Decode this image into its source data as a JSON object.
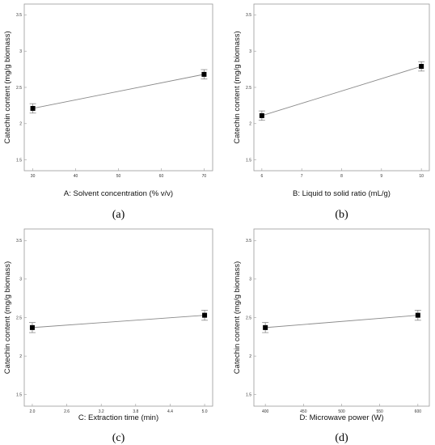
{
  "chart_data": [
    {
      "type": "line",
      "panel_label": "(a)",
      "xlabel": "A: Solvent concentration (% v/v)",
      "ylabel": "Catechin content (mg/g biomass)",
      "xlim": [
        28,
        72
      ],
      "ylim": [
        1.35,
        3.65
      ],
      "xticks": [
        30,
        40,
        50,
        60,
        70
      ],
      "xtick_labels": [
        "30",
        "40",
        "50",
        "60",
        "70"
      ],
      "yticks": [
        1.5,
        2,
        2.5,
        3,
        3.5
      ],
      "ytick_labels": [
        "1.5",
        "2",
        "2.5",
        "3",
        "3.5"
      ],
      "points": [
        {
          "x": 30,
          "y": 2.21,
          "err": 0.065
        },
        {
          "x": 70,
          "y": 2.68,
          "err": 0.065
        }
      ],
      "grid": false,
      "error_bars": true
    },
    {
      "type": "line",
      "panel_label": "(b)",
      "xlabel": "B: Liquid to solid ratio (mL/g)",
      "ylabel": "Catechin content (mg/g biomass)",
      "xlim": [
        5.8,
        10.2
      ],
      "ylim": [
        1.35,
        3.65
      ],
      "xticks": [
        6,
        7,
        8,
        9,
        10
      ],
      "xtick_labels": [
        "6",
        "7",
        "8",
        "9",
        "10"
      ],
      "yticks": [
        1.5,
        2,
        2.5,
        3,
        3.5
      ],
      "ytick_labels": [
        "1.5",
        "2",
        "2.5",
        "3",
        "3.5"
      ],
      "points": [
        {
          "x": 6,
          "y": 2.11,
          "err": 0.065
        },
        {
          "x": 10,
          "y": 2.79,
          "err": 0.065
        }
      ],
      "grid": false,
      "error_bars": true
    },
    {
      "type": "line",
      "panel_label": "(c)",
      "xlabel": "C: Extraction time (min)",
      "ylabel": "Catechin content (mg/g biomass)",
      "xlim": [
        1.86,
        5.14
      ],
      "ylim": [
        1.35,
        3.65
      ],
      "xticks": [
        2.0,
        2.6,
        3.2,
        3.8,
        4.4,
        5.0
      ],
      "xtick_labels": [
        "2.0",
        "2.6",
        "3.2",
        "3.8",
        "4.4",
        "5.0"
      ],
      "yticks": [
        1.5,
        2,
        2.5,
        3,
        3.5
      ],
      "ytick_labels": [
        "1.5",
        "2",
        "2.5",
        "3",
        "3.5"
      ],
      "points": [
        {
          "x": 2.0,
          "y": 2.37,
          "err": 0.065
        },
        {
          "x": 5.0,
          "y": 2.53,
          "err": 0.065
        }
      ],
      "grid": false,
      "error_bars": true
    },
    {
      "type": "line",
      "panel_label": "(d)",
      "xlabel": "D: Microwave power (W)",
      "ylabel": "Catechin content (mg/g biomass)",
      "xlim": [
        385,
        615
      ],
      "ylim": [
        1.35,
        3.65
      ],
      "xticks": [
        400,
        450,
        500,
        550,
        600
      ],
      "xtick_labels": [
        "400",
        "450",
        "500",
        "550",
        "600"
      ],
      "yticks": [
        1.5,
        2,
        2.5,
        3,
        3.5
      ],
      "ytick_labels": [
        "1.5",
        "2",
        "2.5",
        "3",
        "3.5"
      ],
      "points": [
        {
          "x": 400,
          "y": 2.37,
          "err": 0.065
        },
        {
          "x": 600,
          "y": 2.53,
          "err": 0.065
        }
      ],
      "grid": false,
      "error_bars": true
    }
  ]
}
